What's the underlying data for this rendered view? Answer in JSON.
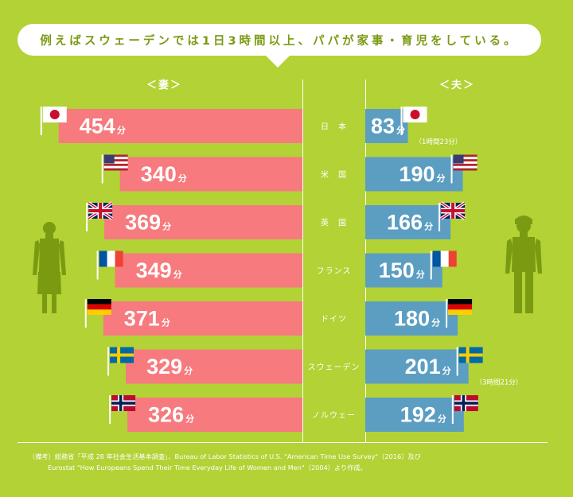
{
  "headline": "例えばスウェーデンでは1日3時間以上、パパが家事・育児をしている。",
  "footnote": {
    "line1": "（備考）総務省「平成 28 年社会生活基本調査」、Bureau of Labor Statistics of U.S. \"American Time Use Survey\"（2016）及び",
    "line2": "Eurostat \"How Europeans Spend Their Time Everyday Life of Women and Men\"（2004）より作成。"
  },
  "colors": {
    "background": "#b2d235",
    "wife_bar": "#f67a7e",
    "husband_bar": "#5b9ec2",
    "figure": "#7a9a12"
  },
  "chart_data": {
    "type": "bar",
    "orientation": "horizontal-butterfly",
    "unit": "分",
    "categories": [
      "日　本",
      "米　国",
      "英　国",
      "フランス",
      "ドイツ",
      "スウェーデン",
      "ノルウェー"
    ],
    "flags": [
      "flag-japan-icon",
      "flag-usa-icon",
      "flag-uk-icon",
      "flag-france-icon",
      "flag-germany-icon",
      "flag-sweden-icon",
      "flag-norway-icon"
    ],
    "series": [
      {
        "name": "＜妻＞",
        "values": [
          454,
          340,
          369,
          349,
          371,
          329,
          326
        ]
      },
      {
        "name": "＜夫＞",
        "values": [
          83,
          190,
          166,
          150,
          180,
          201,
          192
        ]
      }
    ],
    "annotations": [
      {
        "category": "日　本",
        "series": "＜夫＞",
        "text": "（1時間23分）"
      },
      {
        "category": "スウェーデン",
        "series": "＜夫＞",
        "text": "（3時間21分）"
      }
    ]
  }
}
